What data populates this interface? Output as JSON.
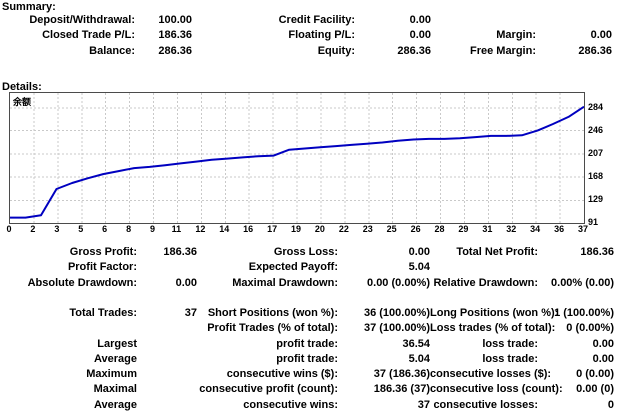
{
  "summary": {
    "heading": "Summary:",
    "rows": [
      [
        "Deposit/Withdrawal:",
        "100.00",
        "Credit Facility:",
        "0.00",
        "",
        ""
      ],
      [
        "Closed Trade P/L:",
        "186.36",
        "Floating P/L:",
        "0.00",
        "Margin:",
        "0.00"
      ],
      [
        "Balance:",
        "286.36",
        "Equity:",
        "286.36",
        "Free Margin:",
        "286.36"
      ]
    ]
  },
  "details": {
    "heading": "Details:",
    "stats1": [
      [
        "Gross Profit:",
        "186.36",
        "Gross Loss:",
        "0.00",
        "Total Net Profit:",
        "186.36"
      ],
      [
        "Profit Factor:",
        "",
        "Expected Payoff:",
        "5.04",
        "",
        ""
      ],
      [
        "Absolute Drawdown:",
        "0.00",
        "Maximal Drawdown:",
        "0.00 (0.00%)",
        "Relative Drawdown:",
        "0.00% (0.00)"
      ]
    ],
    "stats2": [
      [
        "Total Trades:",
        "37",
        "Short Positions (won %):",
        "36 (100.00%)",
        "Long Positions (won %):",
        "1 (100.00%)"
      ],
      [
        "",
        "",
        "Profit Trades (% of total):",
        "37 (100.00%)",
        "Loss trades (% of total):",
        "0 (0.00%)"
      ],
      [
        "Largest",
        "",
        "profit trade:",
        "36.54",
        "loss trade:",
        "0.00"
      ],
      [
        "Average",
        "",
        "profit trade:",
        "5.04",
        "loss trade:",
        "0.00"
      ],
      [
        "Maximum",
        "",
        "consecutive wins ($):",
        "37 (186.36)",
        "consecutive losses ($):",
        "0 (0.00)"
      ],
      [
        "Maximal",
        "",
        "consecutive profit (count):",
        "186.36 (37)",
        "consecutive loss (count):",
        "0.00 (0)"
      ],
      [
        "Average",
        "",
        "consecutive wins:",
        "37",
        "consecutive losses:",
        "0"
      ]
    ]
  },
  "chart_data": {
    "type": "line",
    "title": "余额",
    "x_unit": "trade_number",
    "xlim": [
      0,
      37
    ],
    "ylim": [
      91,
      309
    ],
    "x_tick_labels": [
      "0",
      "2",
      "3",
      "5",
      "6",
      "8",
      "9",
      "11",
      "12",
      "14",
      "16",
      "17",
      "19",
      "20",
      "22",
      "23",
      "25",
      "26",
      "28",
      "29",
      "31",
      "32",
      "34",
      "36",
      "37"
    ],
    "y_ticks": [
      284,
      246,
      207,
      168,
      129,
      91
    ],
    "grid": "dashed",
    "legend_position": "none",
    "series": [
      {
        "name": "Balance",
        "values": [
          100,
          100,
          104,
          148,
          158,
          166,
          173,
          178,
          183,
          185,
          188,
          191,
          194,
          197,
          199,
          201,
          203,
          204,
          214,
          216,
          218,
          220,
          222,
          224,
          226,
          229,
          231,
          232,
          232,
          233,
          235,
          237,
          237,
          238,
          246,
          257,
          269,
          286
        ]
      }
    ],
    "colors": {
      "line": "#0000c0",
      "grid": "#c9c9c9",
      "border": "#4b4b4b",
      "background": "#ffffff",
      "text": "#000000"
    }
  }
}
